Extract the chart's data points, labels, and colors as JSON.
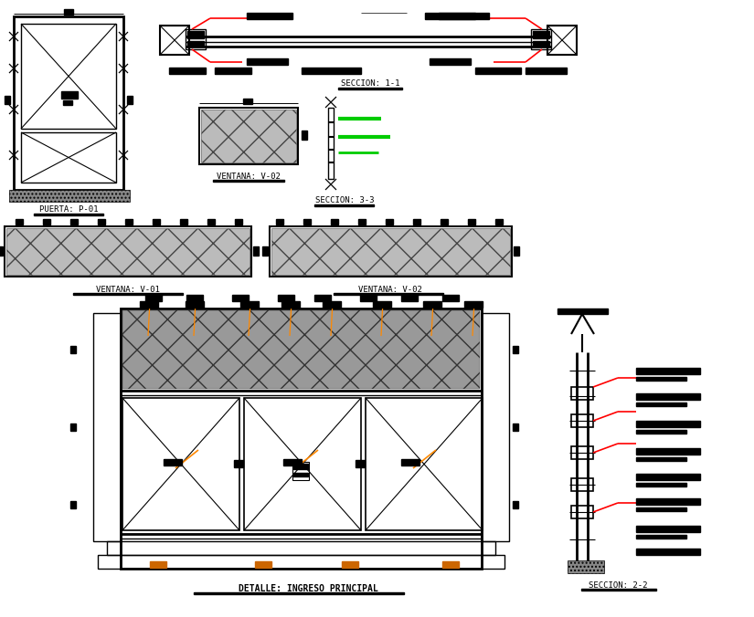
{
  "bg_color": "#ffffff",
  "red_color": "#ff0000",
  "green_color": "#00cc00",
  "orange_color": "#ff8800",
  "title": "DETALLE: INGRESO PRINCIPAL",
  "label_puerta": "PUERTA: P-01",
  "label_ventana02_small": "VENTANA: V-02",
  "label_seccion11": "SECCION: 1-1",
  "label_seccion33": "SECCION: 3-3",
  "label_ventana01": "VENTANA: V-01",
  "label_ventana02": "VENTANA: V-02",
  "label_seccion22": "SECCION: 2-2"
}
